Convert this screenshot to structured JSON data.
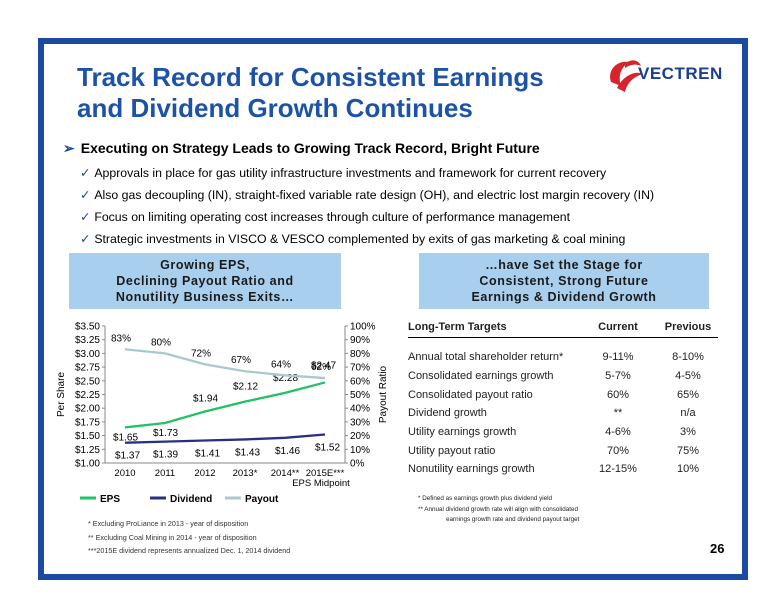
{
  "slide": {
    "title_line1": "Track Record for Consistent Earnings",
    "title_line2": "and Dividend Growth Continues",
    "logo_text": "VECTREN",
    "page_number": "26",
    "headline": "Executing on Strategy Leads to Growing Track Record, Bright Future",
    "bullets": [
      "Approvals in place for gas utility infrastructure investments and framework for current recovery",
      "Also gas decoupling (IN), straight-fixed variable rate design (OH), and electric lost margin recovery (IN)",
      "Focus on limiting operating cost increases through culture of performance management",
      "Strategic investments in VISCO & VESCO complemented by exits of gas marketing & coal mining"
    ],
    "box_left": [
      "Growing EPS,",
      "Declining Payout Ratio and",
      "Nonutility Business Exits…"
    ],
    "box_right": [
      "…have Set the Stage for",
      "Consistent, Strong Future",
      "Earnings & Dividend Growth"
    ]
  },
  "colors": {
    "brand_blue": "#1b4aa0",
    "title_blue": "#1d53a7",
    "box_fill": "#a9cfee",
    "eps_green": "#22c163",
    "dividend_navy": "#2a2f86",
    "payout_teal": "#a9c9cc",
    "logo_red": "#d8232a"
  },
  "chart_data": {
    "type": "line",
    "categories": [
      "2010",
      "2011",
      "2012",
      "2013*",
      "2014**",
      "2015E***"
    ],
    "x_sublabel": "EPS Midpoint",
    "ylabel_left": "Per Share",
    "ylabel_right": "Payout Ratio",
    "ylim_left": [
      1.0,
      3.5
    ],
    "ylim_right": [
      0,
      100
    ],
    "yticks_left": [
      "$1.00",
      "$1.25",
      "$1.50",
      "$1.75",
      "$2.00",
      "$2.25",
      "$2.50",
      "$2.75",
      "$3.00",
      "$3.25",
      "$3.50"
    ],
    "yticks_right": [
      "0%",
      "10%",
      "20%",
      "30%",
      "40%",
      "50%",
      "60%",
      "70%",
      "80%",
      "90%",
      "100%"
    ],
    "legend_position": "bottom",
    "grid": false,
    "series": [
      {
        "name": "EPS",
        "axis": "left",
        "values": [
          1.65,
          1.73,
          1.94,
          2.12,
          2.28,
          2.47
        ],
        "labels": [
          "$1.65",
          "$1.73",
          "$1.94",
          "$2.12",
          "$2.28",
          "$2.47"
        ]
      },
      {
        "name": "Dividend",
        "axis": "left",
        "values": [
          1.37,
          1.39,
          1.41,
          1.43,
          1.46,
          1.52
        ],
        "labels": [
          "$1.37",
          "$1.39",
          "$1.41",
          "$1.43",
          "$1.46",
          "$1.52"
        ]
      },
      {
        "name": "Payout",
        "axis": "right",
        "values": [
          83,
          80,
          72,
          67,
          64,
          62
        ],
        "labels": [
          "83%",
          "80%",
          "72%",
          "67%",
          "64%",
          "62%"
        ]
      }
    ],
    "footnotes": [
      "*   Excluding ProLiance in 2013 - year of disposition",
      "**  Excluding Coal Mining in 2014 - year of disposition",
      "***2015E dividend represents annualized Dec. 1, 2014 dividend"
    ]
  },
  "targets_table": {
    "headers": [
      "Long-Term Targets",
      "Current",
      "Previous"
    ],
    "rows": [
      [
        "Annual total shareholder return*",
        "9-11%",
        "8-10%"
      ],
      [
        "Consolidated earnings growth",
        "5-7%",
        "4-5%"
      ],
      [
        "Consolidated payout ratio",
        "60%",
        "65%"
      ],
      [
        "Dividend growth",
        "**",
        "n/a"
      ],
      [
        "Utility earnings growth",
        "4-6%",
        "3%"
      ],
      [
        "Utility payout ratio",
        "70%",
        "75%"
      ],
      [
        "Nonutility earnings growth",
        "12-15%",
        "10%"
      ]
    ],
    "notes": [
      "* Defined as earnings growth plus dividend yield",
      "** Annual dividend growth rate will align with consolidated",
      "earnings growth rate and dividend payout target"
    ]
  }
}
